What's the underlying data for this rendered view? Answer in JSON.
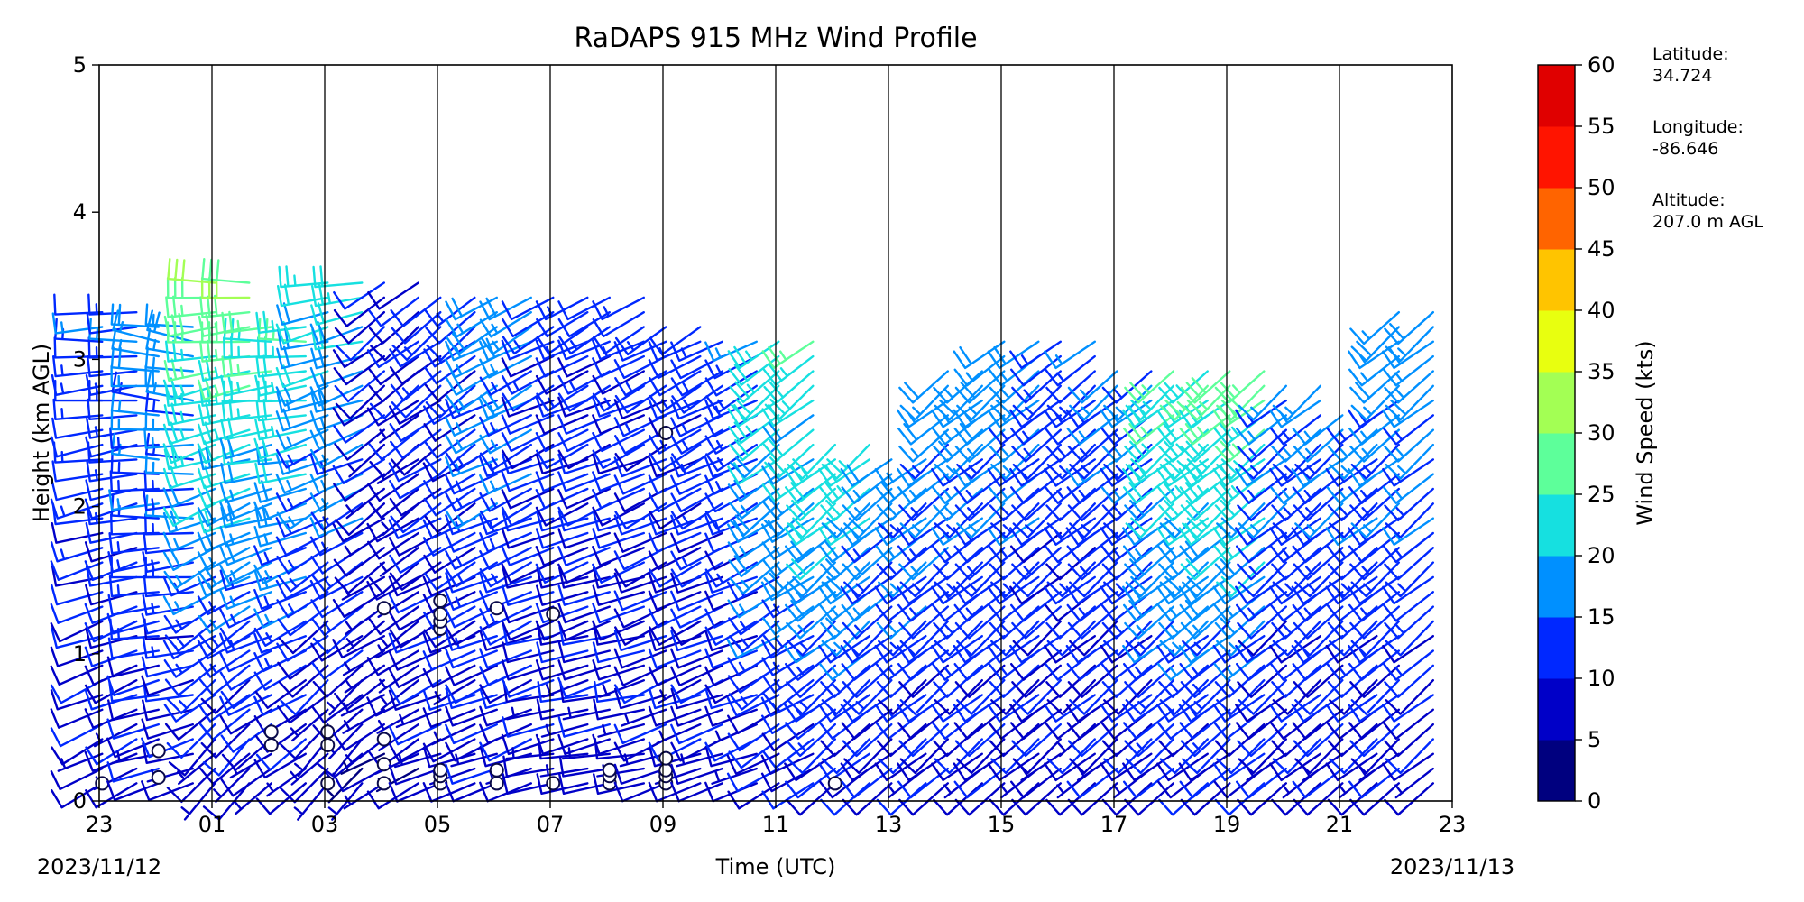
{
  "chart_data": {
    "type": "wind-barb profile",
    "title": "RaDAPS 915 MHz Wind Profile",
    "xlabel": "Time (UTC)",
    "ylabel": "Height (km AGL)",
    "ylim": [
      0,
      5
    ],
    "yticks": [
      "0",
      "1",
      "2",
      "3",
      "4",
      "5"
    ],
    "xticks": [
      "23",
      "01",
      "03",
      "05",
      "07",
      "09",
      "11",
      "13",
      "15",
      "17",
      "19",
      "21",
      "23"
    ],
    "date_start": "2023/11/12",
    "date_end": "2023/11/13",
    "colorbar": {
      "label": "Wind Speed (kts)",
      "ticks": [
        "0",
        "5",
        "10",
        "15",
        "20",
        "25",
        "30",
        "35",
        "40",
        "45",
        "50",
        "55",
        "60"
      ],
      "colors": [
        "#00007f",
        "#0000c8",
        "#0028ff",
        "#0090ff",
        "#16e0e0",
        "#5dff9a",
        "#a3ff54",
        "#e8ff0f",
        "#ffc400",
        "#ff6400",
        "#ff1400",
        "#e00000",
        "#7f0000"
      ]
    },
    "profiles": [
      {
        "time": "23:30",
        "max_km": 3.4,
        "speed_low": 8,
        "speed_high": 14,
        "dir_low": 240,
        "dir_high": 270,
        "calm_km": [
          0.12
        ]
      },
      {
        "time": "00:30",
        "max_km": 3.3,
        "speed_low": 8,
        "speed_high": 18,
        "dir_low": 250,
        "dir_high": 280,
        "calm_km": [
          0.16,
          0.34
        ]
      },
      {
        "time": "01:30",
        "max_km": 3.6,
        "speed_low": 6,
        "speed_high": 30,
        "dir_low": 220,
        "dir_high": 270,
        "calm_km": []
      },
      {
        "time": "02:30",
        "max_km": 3.3,
        "speed_low": 6,
        "speed_high": 26,
        "dir_low": 230,
        "dir_high": 270,
        "calm_km": [
          0.38,
          0.47
        ]
      },
      {
        "time": "03:30",
        "max_km": 3.6,
        "speed_low": 5,
        "speed_high": 22,
        "dir_low": 220,
        "dir_high": 260,
        "calm_km": [
          0.12,
          0.38,
          0.47
        ]
      },
      {
        "time": "04:30",
        "max_km": 3.6,
        "speed_low": 6,
        "speed_high": 10,
        "dir_low": 240,
        "dir_high": 230,
        "calm_km": [
          0.12,
          0.25,
          0.42,
          1.31
        ]
      },
      {
        "time": "05:30",
        "max_km": 3.5,
        "speed_low": 8,
        "speed_high": 12,
        "dir_low": 250,
        "dir_high": 230,
        "calm_km": [
          0.12,
          0.17,
          0.21,
          1.17,
          1.22,
          1.27,
          1.36
        ]
      },
      {
        "time": "06:30",
        "max_km": 3.5,
        "speed_low": 8,
        "speed_high": 18,
        "dir_low": 250,
        "dir_high": 240,
        "calm_km": [
          0.12,
          0.21,
          1.31
        ]
      },
      {
        "time": "07:30",
        "max_km": 3.5,
        "speed_low": 8,
        "speed_high": 12,
        "dir_low": 260,
        "dir_high": 240,
        "calm_km": [
          0.12,
          1.27
        ]
      },
      {
        "time": "08:30",
        "max_km": 3.5,
        "speed_low": 8,
        "speed_high": 12,
        "dir_low": 260,
        "dir_high": 240,
        "calm_km": [
          0.12,
          0.17,
          0.21
        ]
      },
      {
        "time": "09:30",
        "max_km": 3.3,
        "speed_low": 8,
        "speed_high": 12,
        "dir_low": 250,
        "dir_high": 240,
        "calm_km": [
          0.12,
          0.17,
          0.21,
          0.29,
          2.5
        ]
      },
      {
        "time": "10:30",
        "max_km": 3.2,
        "speed_low": 8,
        "speed_high": 14,
        "dir_low": 250,
        "dir_high": 240,
        "calm_km": []
      },
      {
        "time": "11:30",
        "max_km": 3.2,
        "speed_low": 8,
        "speed_high": 24,
        "dir_low": 240,
        "dir_high": 230,
        "calm_km": []
      },
      {
        "time": "12:30",
        "max_km": 2.5,
        "speed_low": 8,
        "speed_high": 24,
        "dir_low": 230,
        "dir_high": 230,
        "calm_km": [
          0.12
        ]
      },
      {
        "time": "13:30",
        "max_km": 2.4,
        "speed_low": 8,
        "speed_high": 18,
        "dir_low": 230,
        "dir_high": 230,
        "calm_km": []
      },
      {
        "time": "14:30",
        "max_km": 3.0,
        "speed_low": 8,
        "speed_high": 18,
        "dir_low": 230,
        "dir_high": 230,
        "calm_km": []
      },
      {
        "time": "15:30",
        "max_km": 3.2,
        "speed_low": 8,
        "speed_high": 18,
        "dir_low": 230,
        "dir_high": 230,
        "calm_km": []
      },
      {
        "time": "16:30",
        "max_km": 3.2,
        "speed_low": 8,
        "speed_high": 14,
        "dir_low": 230,
        "dir_high": 230,
        "calm_km": []
      },
      {
        "time": "17:30",
        "max_km": 3.0,
        "speed_low": 8,
        "speed_high": 16,
        "dir_low": 230,
        "dir_high": 230,
        "calm_km": []
      },
      {
        "time": "18:30",
        "max_km": 3.0,
        "speed_low": 8,
        "speed_high": 26,
        "dir_low": 230,
        "dir_high": 230,
        "calm_km": []
      },
      {
        "time": "19:30",
        "max_km": 3.0,
        "speed_low": 8,
        "speed_high": 28,
        "dir_low": 230,
        "dir_high": 230,
        "calm_km": []
      },
      {
        "time": "20:30",
        "max_km": 2.9,
        "speed_low": 8,
        "speed_high": 16,
        "dir_low": 230,
        "dir_high": 230,
        "calm_km": []
      },
      {
        "time": "21:30",
        "max_km": 2.7,
        "speed_low": 8,
        "speed_high": 16,
        "dir_low": 230,
        "dir_high": 230,
        "calm_km": []
      },
      {
        "time": "22:30",
        "max_km": 3.4,
        "speed_low": 8,
        "speed_high": 18,
        "dir_low": 230,
        "dir_high": 230,
        "calm_km": []
      }
    ]
  },
  "site_info": {
    "latitude_label": "Latitude:",
    "latitude": "34.724",
    "longitude_label": "Longitude:",
    "longitude": "-86.646",
    "altitude_label": "Altitude:",
    "altitude": "207.0 m AGL"
  }
}
